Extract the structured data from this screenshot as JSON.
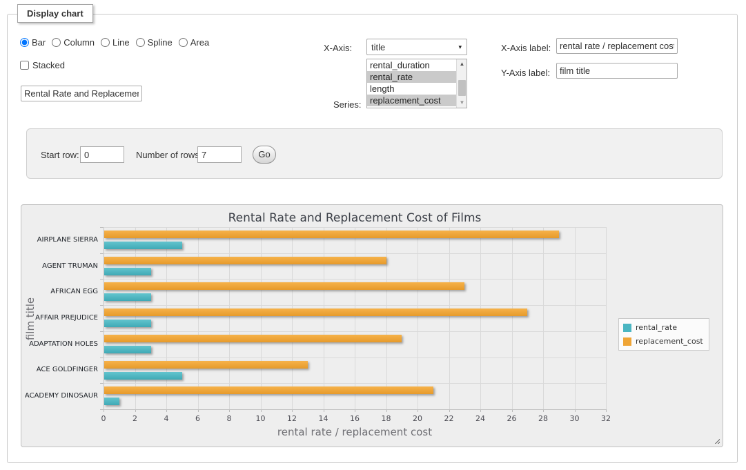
{
  "panel": {
    "legend": "Display chart"
  },
  "chart_type_options": [
    {
      "label": "Bar",
      "selected": true
    },
    {
      "label": "Column",
      "selected": false
    },
    {
      "label": "Line",
      "selected": false
    },
    {
      "label": "Spline",
      "selected": false
    },
    {
      "label": "Area",
      "selected": false
    }
  ],
  "stacked": {
    "label": "Stacked",
    "checked": false
  },
  "title_input": {
    "value": "Rental Rate and Replacement Cost of Films"
  },
  "x_axis_select": {
    "label": "X-Axis:",
    "selected_value": "title",
    "arrow_icon": "▾"
  },
  "series_select": {
    "label": "Series:",
    "options": [
      {
        "label": "rental_duration",
        "selected": false
      },
      {
        "label": "rental_rate",
        "selected": true
      },
      {
        "label": "length",
        "selected": false
      },
      {
        "label": "replacement_cost",
        "selected": true
      }
    ],
    "scroll_up_icon": "▲",
    "scroll_down_icon": "▼"
  },
  "x_axis_label": {
    "label": "X-Axis label:",
    "value": "rental rate / replacement cost"
  },
  "y_axis_label": {
    "label": "Y-Axis label:",
    "value": "film title"
  },
  "row_controls": {
    "start_row_label": "Start row:",
    "start_row_value": "0",
    "num_rows_label": "Number of rows:",
    "num_rows_value": "7",
    "go_label": "Go"
  },
  "chart_data": {
    "type": "bar",
    "orientation": "horizontal",
    "title": "Rental Rate and Replacement Cost of Films",
    "xlabel": "rental rate / replacement cost",
    "ylabel": "film title",
    "categories": [
      "AIRPLANE SIERRA",
      "AGENT TRUMAN",
      "AFRICAN EGG",
      "AFFAIR PREJUDICE",
      "ADAPTATION HOLES",
      "ACE GOLDFINGER",
      "ACADEMY DINOSAUR"
    ],
    "series": [
      {
        "name": "rental_rate",
        "color": "#4bb6c2",
        "values": [
          4.99,
          2.99,
          2.99,
          2.99,
          2.99,
          4.99,
          0.99
        ]
      },
      {
        "name": "replacement_cost",
        "color": "#efa536",
        "values": [
          28.99,
          17.99,
          22.99,
          26.99,
          18.99,
          12.99,
          20.99
        ]
      }
    ],
    "xlim": [
      0,
      32
    ],
    "xticks": [
      0,
      2,
      4,
      6,
      8,
      10,
      12,
      14,
      16,
      18,
      20,
      22,
      24,
      26,
      28,
      30,
      32
    ],
    "grid": true,
    "legend_position": "right",
    "bar_group_order_top_to_bottom": [
      "replacement_cost",
      "rental_rate"
    ]
  }
}
